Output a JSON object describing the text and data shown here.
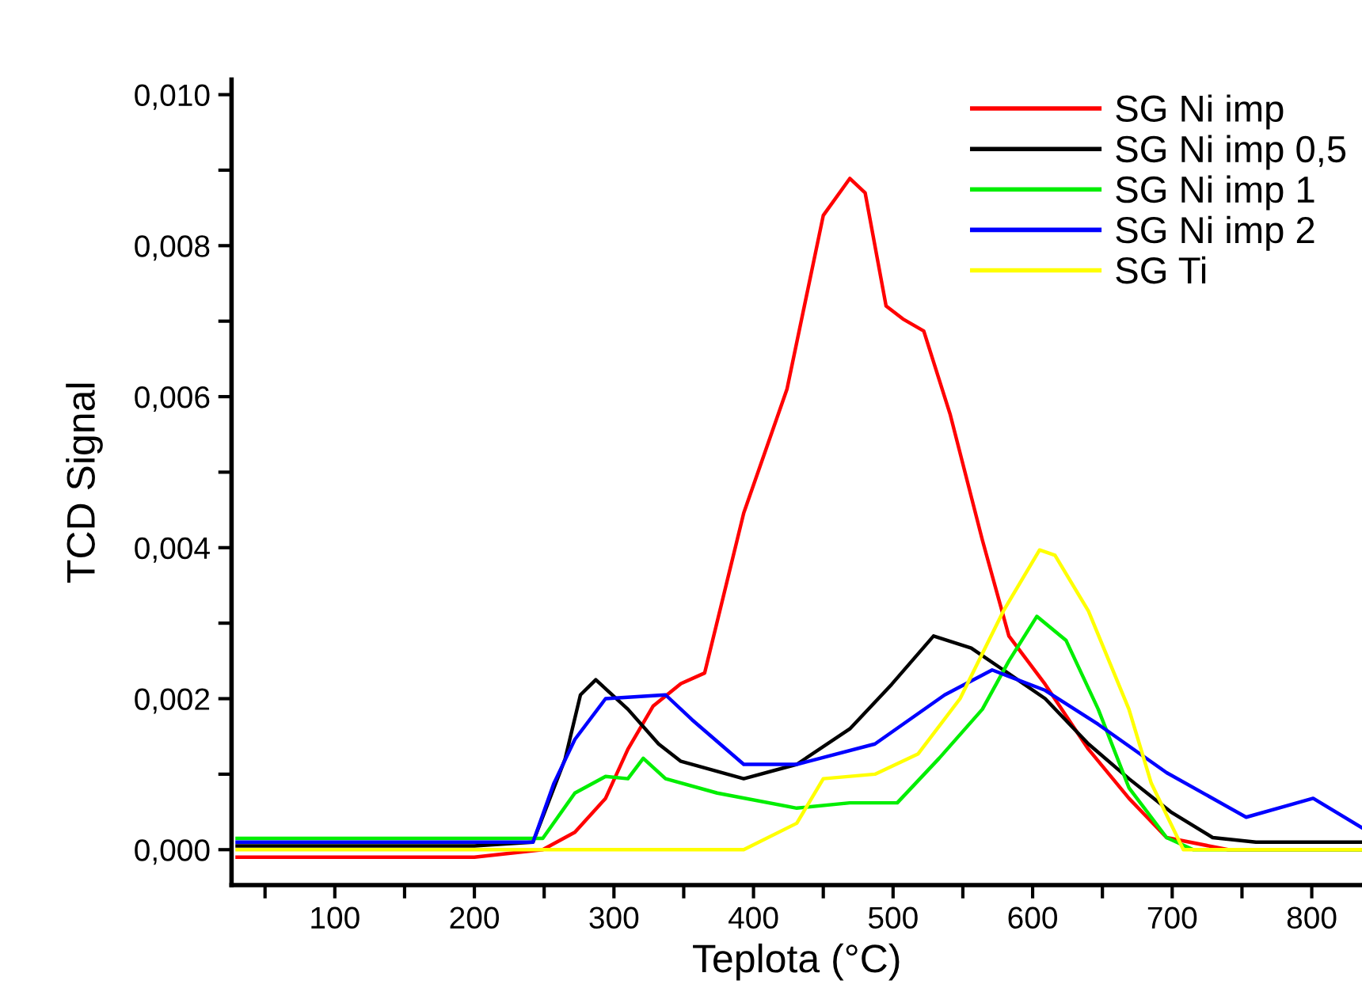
{
  "chart_data": {
    "type": "line",
    "xlabel": "Teplota (°C)",
    "ylabel": "TCD Signal",
    "xlim": [
      26,
      836
    ],
    "ylim": [
      -0.00047,
      0.0102
    ],
    "xticks": [
      {
        "value": 50,
        "label": null
      },
      100,
      {
        "value": 150,
        "label": null
      },
      200,
      {
        "value": 250,
        "label": null
      },
      300,
      {
        "value": 350,
        "label": null
      },
      400,
      {
        "value": 450,
        "label": null
      },
      500,
      {
        "value": 550,
        "label": null
      },
      600,
      {
        "value": 650,
        "label": null
      },
      700,
      {
        "value": 750,
        "label": null
      },
      800
    ],
    "yticks": [
      {
        "value": 0,
        "label": "0,000"
      },
      {
        "value": 0.001,
        "label": null
      },
      {
        "value": 0.002,
        "label": "0,002"
      },
      {
        "value": 0.003,
        "label": null
      },
      {
        "value": 0.004,
        "label": "0,004"
      },
      {
        "value": 0.005,
        "label": null
      },
      {
        "value": 0.006,
        "label": "0,006"
      },
      {
        "value": 0.007,
        "label": null
      },
      {
        "value": 0.008,
        "label": "0,008"
      },
      {
        "value": 0.009,
        "label": null
      },
      {
        "value": 0.01,
        "label": "0,010"
      }
    ],
    "grid": false,
    "legend": "top right",
    "marker": "none",
    "line_style": "solid",
    "series": [
      {
        "name": "SG Ni imp",
        "color": "#ff0000",
        "x": [
          30,
          100,
          200,
          249,
          272,
          294,
          310,
          328,
          348,
          365,
          393,
          424,
          450,
          469,
          480,
          495,
          507,
          522,
          541,
          564,
          583,
          609,
          640,
          669,
          696,
          740,
          836
        ],
        "values": [
          -0.0001,
          -0.0001,
          -0.0001,
          0,
          0.00023,
          0.00068,
          0.00133,
          0.0019,
          0.0022,
          0.00234,
          0.00446,
          0.0061,
          0.0084,
          0.00889,
          0.0087,
          0.0072,
          0.00703,
          0.00687,
          0.00576,
          0.0041,
          0.00283,
          0.00219,
          0.00133,
          0.00068,
          0.00016,
          0,
          0
        ]
      },
      {
        "name": "SG Ni imp 0,5",
        "color": "#000000",
        "x": [
          30,
          100,
          200,
          242,
          265,
          276,
          287,
          310,
          332,
          348,
          393,
          431,
          469,
          499,
          529,
          556,
          579,
          609,
          640,
          669,
          699,
          729,
          760,
          836
        ],
        "values": [
          5e-05,
          5e-05,
          5e-05,
          0.0001,
          0.0012,
          0.00205,
          0.00225,
          0.00186,
          0.0014,
          0.00117,
          0.00094,
          0.00113,
          0.0016,
          0.00219,
          0.00283,
          0.00267,
          0.00238,
          0.002,
          0.0014,
          0.00094,
          0.0005,
          0.00016,
          0.0001,
          0.0001
        ]
      },
      {
        "name": "SG Ni imp 1",
        "color": "#00ee00",
        "x": [
          30,
          100,
          200,
          249,
          272,
          294,
          310,
          321,
          337,
          374,
          431,
          469,
          503,
          533,
          564,
          583,
          603,
          624,
          647,
          669,
          696,
          715,
          836
        ],
        "values": [
          0.00015,
          0.00015,
          0.00015,
          0.00015,
          0.00075,
          0.00097,
          0.00094,
          0.00121,
          0.00094,
          0.00075,
          0.00055,
          0.00062,
          0.00062,
          0.00121,
          0.00186,
          0.0025,
          0.00309,
          0.00277,
          0.00186,
          0.00082,
          0.00016,
          0,
          0
        ]
      },
      {
        "name": "SG Ni imp 2",
        "color": "#0000ff",
        "x": [
          30,
          100,
          200,
          242,
          257,
          272,
          294,
          337,
          356,
          393,
          431,
          487,
          537,
          571,
          609,
          647,
          696,
          753,
          801,
          836
        ],
        "values": [
          0.0001,
          0.0001,
          0.0001,
          0.0001,
          0.00088,
          0.00146,
          0.002,
          0.00205,
          0.00172,
          0.00113,
          0.00113,
          0.0014,
          0.00205,
          0.00238,
          0.00211,
          0.00166,
          0.00102,
          0.00043,
          0.00068,
          0.00029
        ]
      },
      {
        "name": "SG Ti",
        "color": "#ffff00",
        "x": [
          30,
          100,
          200,
          337,
          393,
          431,
          450,
          487,
          518,
          548,
          579,
          605,
          616,
          640,
          669,
          685,
          708,
          734,
          836
        ],
        "values": [
          0,
          0,
          0,
          0,
          0,
          0.00035,
          0.00094,
          0.001,
          0.00127,
          0.002,
          0.00316,
          0.00397,
          0.0039,
          0.00316,
          0.00186,
          0.00088,
          0,
          0,
          0
        ]
      }
    ]
  }
}
